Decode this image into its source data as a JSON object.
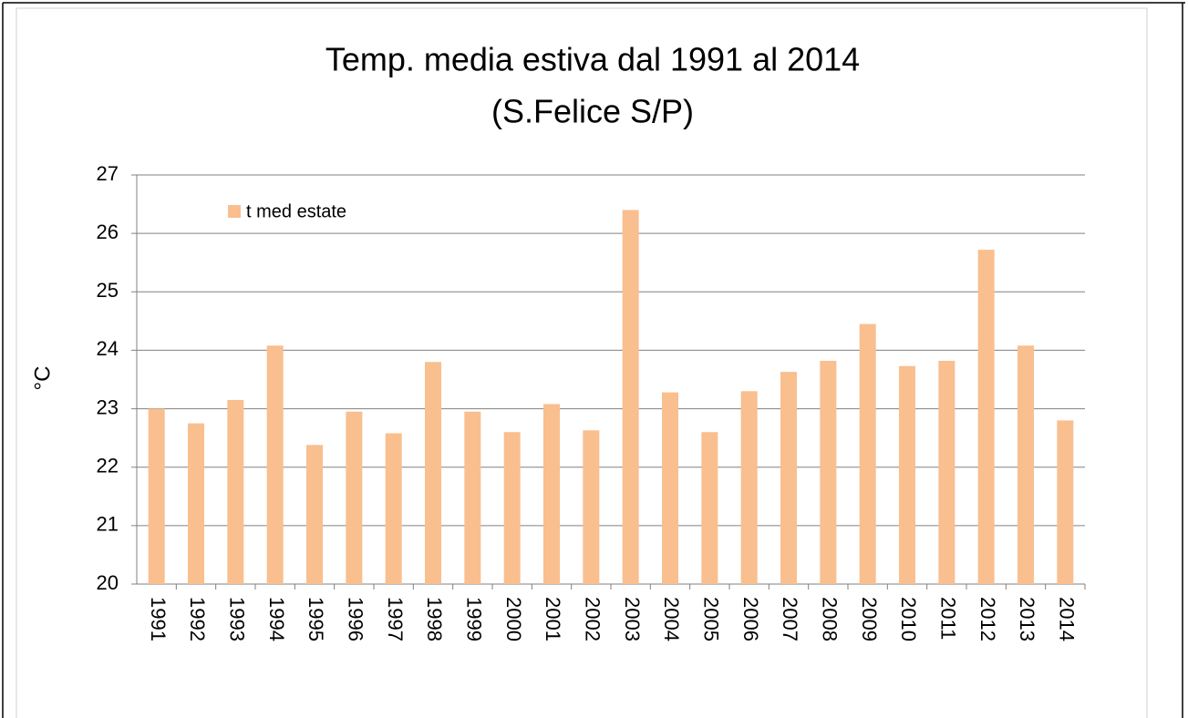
{
  "chart_data": {
    "type": "bar",
    "title": "Temp. media estiva dal 1991 al 2014",
    "subtitle": "(S.Felice S/P)",
    "ylabel": "°C",
    "categories": [
      "1991",
      "1992",
      "1993",
      "1994",
      "1995",
      "1996",
      "1997",
      "1998",
      "1999",
      "2000",
      "2001",
      "2002",
      "2003",
      "2004",
      "2005",
      "2006",
      "2007",
      "2008",
      "2009",
      "2010",
      "2011",
      "2012",
      "2013",
      "2014"
    ],
    "series": [
      {
        "name": "t med estate",
        "color": "#f9bf8f",
        "values": [
          23.0,
          22.75,
          23.15,
          24.08,
          22.38,
          22.95,
          22.58,
          23.8,
          22.95,
          22.6,
          23.08,
          22.63,
          26.4,
          23.28,
          22.6,
          23.3,
          23.63,
          23.82,
          24.45,
          23.73,
          23.82,
          25.72,
          24.08,
          22.8
        ]
      }
    ],
    "ylim": [
      20,
      27
    ],
    "yticks": [
      20,
      21,
      22,
      23,
      24,
      25,
      26,
      27
    ],
    "grid": true,
    "legend": "top-left"
  }
}
